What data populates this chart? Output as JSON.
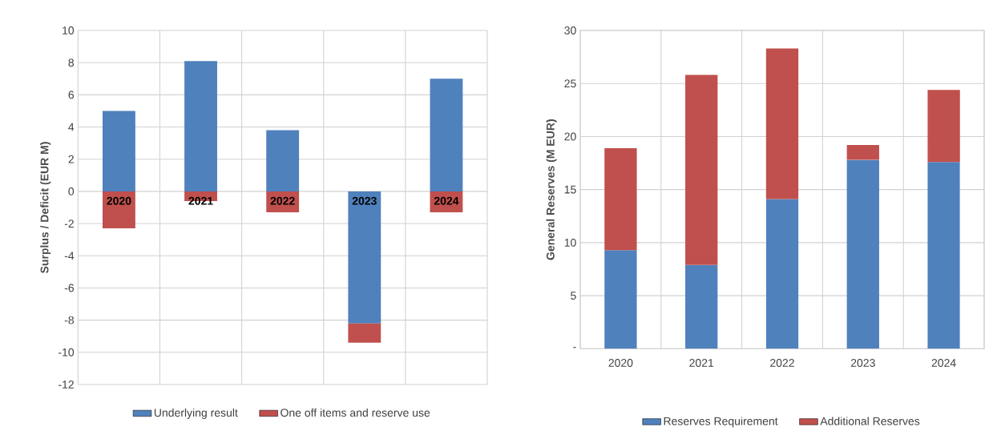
{
  "chart_data": [
    {
      "type": "bar",
      "stacked": true,
      "ylabel": "Surplus / Deficit (EUR M)",
      "categories": [
        "2020",
        "2021",
        "2022",
        "2023",
        "2024"
      ],
      "series": [
        {
          "name": "Underlying result",
          "color": "#4f81bd",
          "values": [
            5.0,
            8.1,
            3.8,
            -8.2,
            7.0
          ]
        },
        {
          "name": "One off items and reserve use",
          "color": "#c0504d",
          "values": [
            -2.3,
            -0.6,
            -1.3,
            -1.2,
            -1.3
          ]
        }
      ],
      "ylim": [
        -12,
        10
      ],
      "yticks": [
        -12,
        -10,
        -8,
        -6,
        -4,
        -2,
        0,
        2,
        4,
        6,
        8,
        10
      ],
      "grid": true,
      "legend": "bottom"
    },
    {
      "type": "bar",
      "stacked": true,
      "ylabel": "General Reserves (M EUR)",
      "categories": [
        "2020",
        "2021",
        "2022",
        "2023",
        "2024"
      ],
      "series": [
        {
          "name": "Reserves Requirement",
          "color": "#4f81bd",
          "values": [
            9.3,
            7.9,
            14.1,
            17.8,
            17.6
          ]
        },
        {
          "name": "Additional Reserves",
          "color": "#c0504d",
          "values": [
            9.6,
            17.9,
            14.2,
            1.4,
            6.8
          ]
        }
      ],
      "ylim": [
        0,
        30
      ],
      "yticks": [
        {
          "value": 0,
          "label": "-"
        },
        5,
        10,
        15,
        20,
        25,
        30
      ],
      "grid": true,
      "legend": "bottom"
    }
  ]
}
